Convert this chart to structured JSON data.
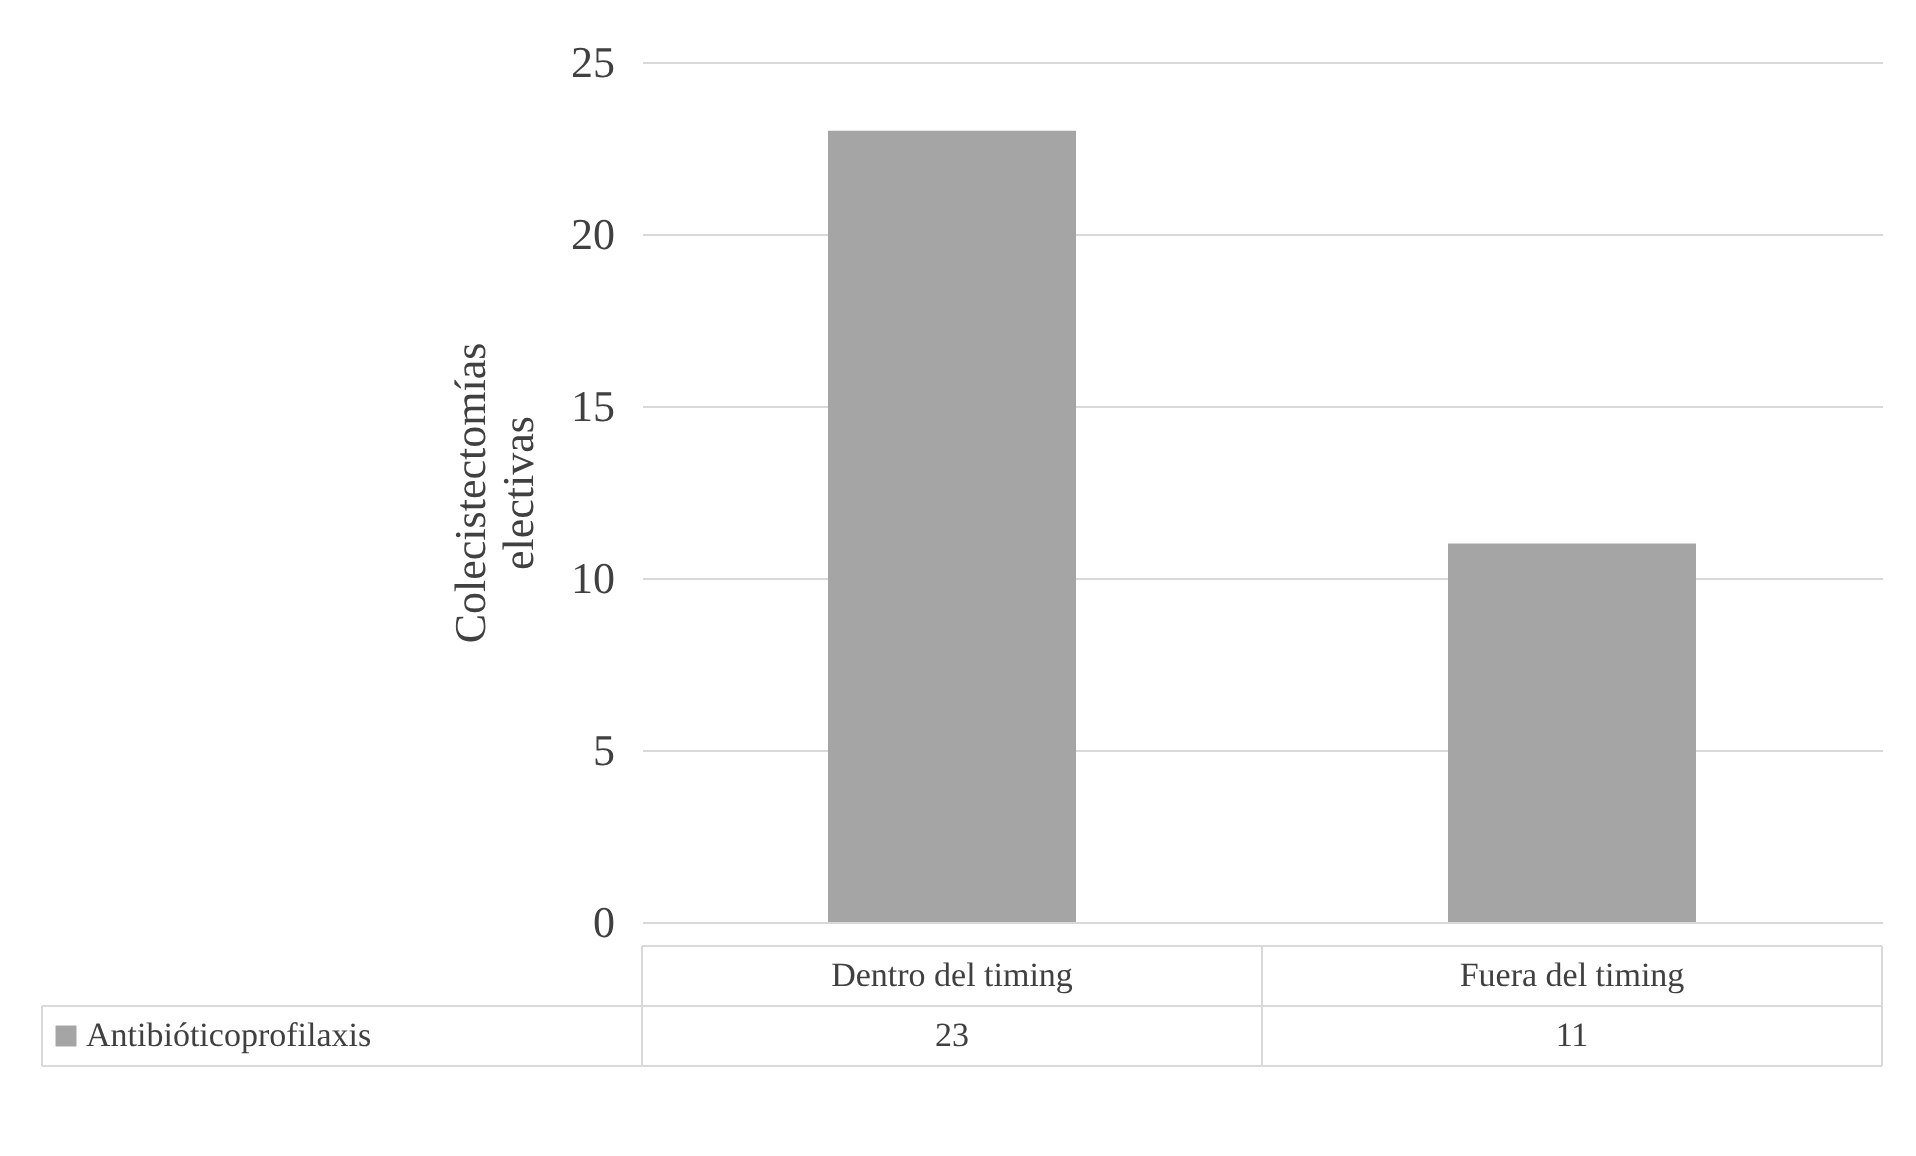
{
  "chart_data": {
    "type": "bar",
    "ylabel": "Colecistectomías electivas",
    "categories": [
      "Dentro del timing",
      "Fuera del timing"
    ],
    "series": [
      {
        "name": "Antibióticoprofilaxis",
        "color": "#a5a5a5",
        "values": [
          23,
          11
        ]
      }
    ],
    "ylim": [
      0,
      25
    ],
    "yticks": [
      0,
      5,
      10,
      15,
      20,
      25
    ],
    "grid": "y",
    "legend": "bottom",
    "data_labels": true
  }
}
